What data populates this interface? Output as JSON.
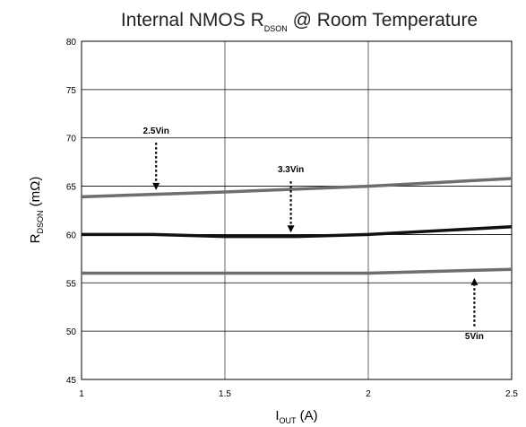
{
  "chart_data": {
    "type": "line",
    "title": {
      "main": "Internal NMOS R",
      "sub": "DSON",
      "rest": " @ Room Temperature"
    },
    "xlabel": {
      "main": "I",
      "sub": "OUT",
      "rest": " (A)"
    },
    "ylabel": {
      "main": "R",
      "sub": "DSON",
      "rest": " (mΩ)"
    },
    "xlim": [
      1,
      2.5
    ],
    "ylim": [
      45,
      80
    ],
    "xticks": [
      "1",
      "1.5",
      "2",
      "2.5"
    ],
    "yticks": [
      "45",
      "50",
      "55",
      "60",
      "65",
      "70",
      "75",
      "80"
    ],
    "grid": true,
    "series": [
      {
        "name": "2.5Vin",
        "color": "#6e6e6e",
        "x": [
          1.0,
          1.5,
          2.0,
          2.5
        ],
        "y": [
          63.9,
          64.4,
          65.0,
          65.8
        ]
      },
      {
        "name": "3.3Vin",
        "color": "#111111",
        "x": [
          1.0,
          1.25,
          1.5,
          1.75,
          2.0,
          2.5
        ],
        "y": [
          60.0,
          60.0,
          59.8,
          59.8,
          60.0,
          60.8
        ]
      },
      {
        "name": "5Vin",
        "color": "#6e6e6e",
        "x": [
          1.0,
          1.5,
          2.0,
          2.5
        ],
        "y": [
          56.0,
          56.0,
          56.0,
          56.4
        ]
      }
    ],
    "annotations": [
      {
        "text": "2.5Vin",
        "arrow_x": 1.26,
        "arrow_from_y": 69.5,
        "arrow_to_y": 64.6,
        "direction": "down"
      },
      {
        "text": "3.3Vin",
        "arrow_x": 1.73,
        "arrow_from_y": 65.5,
        "arrow_to_y": 60.2,
        "direction": "down"
      },
      {
        "text": "5Vin",
        "arrow_x": 2.37,
        "arrow_from_y": 50.5,
        "arrow_to_y": 55.5,
        "direction": "up"
      }
    ]
  }
}
